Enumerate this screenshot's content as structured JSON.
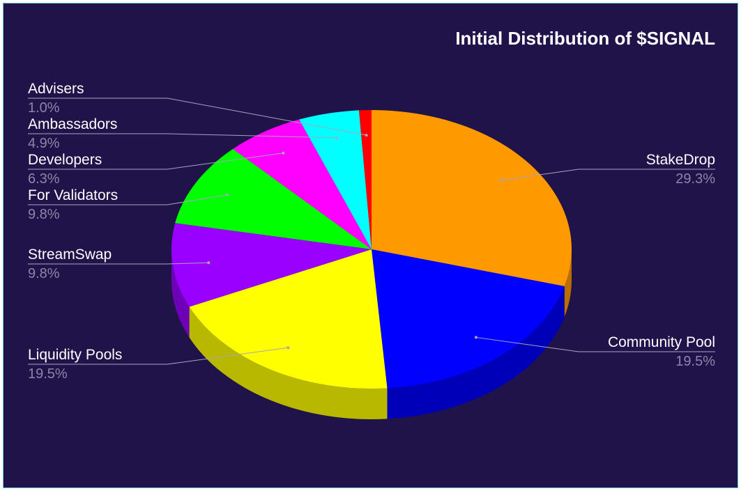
{
  "chart_data": {
    "type": "pie",
    "title": "Initial Distribution of $SIGNAL",
    "slices": [
      {
        "label": "StakeDrop",
        "value": 29.3,
        "pct_label": "29.3%",
        "color": "#ff9900",
        "side_color": "#b86e00"
      },
      {
        "label": "Community Pool",
        "value": 19.5,
        "pct_label": "19.5%",
        "color": "#0000ff",
        "side_color": "#0000b8"
      },
      {
        "label": "Liquidity Pools",
        "value": 19.5,
        "pct_label": "19.5%",
        "color": "#ffff00",
        "side_color": "#b8b800"
      },
      {
        "label": "StreamSwap",
        "value": 9.8,
        "pct_label": "9.8%",
        "color": "#9900ff",
        "side_color": "#6e00b8"
      },
      {
        "label": "For Validators",
        "value": 9.8,
        "pct_label": "9.8%",
        "color": "#00ff00",
        "side_color": "#00b800"
      },
      {
        "label": "Developers",
        "value": 6.3,
        "pct_label": "6.3%",
        "color": "#ff00ff",
        "side_color": "#b800b8"
      },
      {
        "label": "Ambassadors",
        "value": 4.9,
        "pct_label": "4.9%",
        "color": "#00ffff",
        "side_color": "#00b8b8"
      },
      {
        "label": "Advisers",
        "value": 1.0,
        "pct_label": "1.0%",
        "color": "#ff0000",
        "side_color": "#b80000"
      }
    ],
    "legend": "none",
    "start_angle": "top, clockwise",
    "style": "3d"
  }
}
